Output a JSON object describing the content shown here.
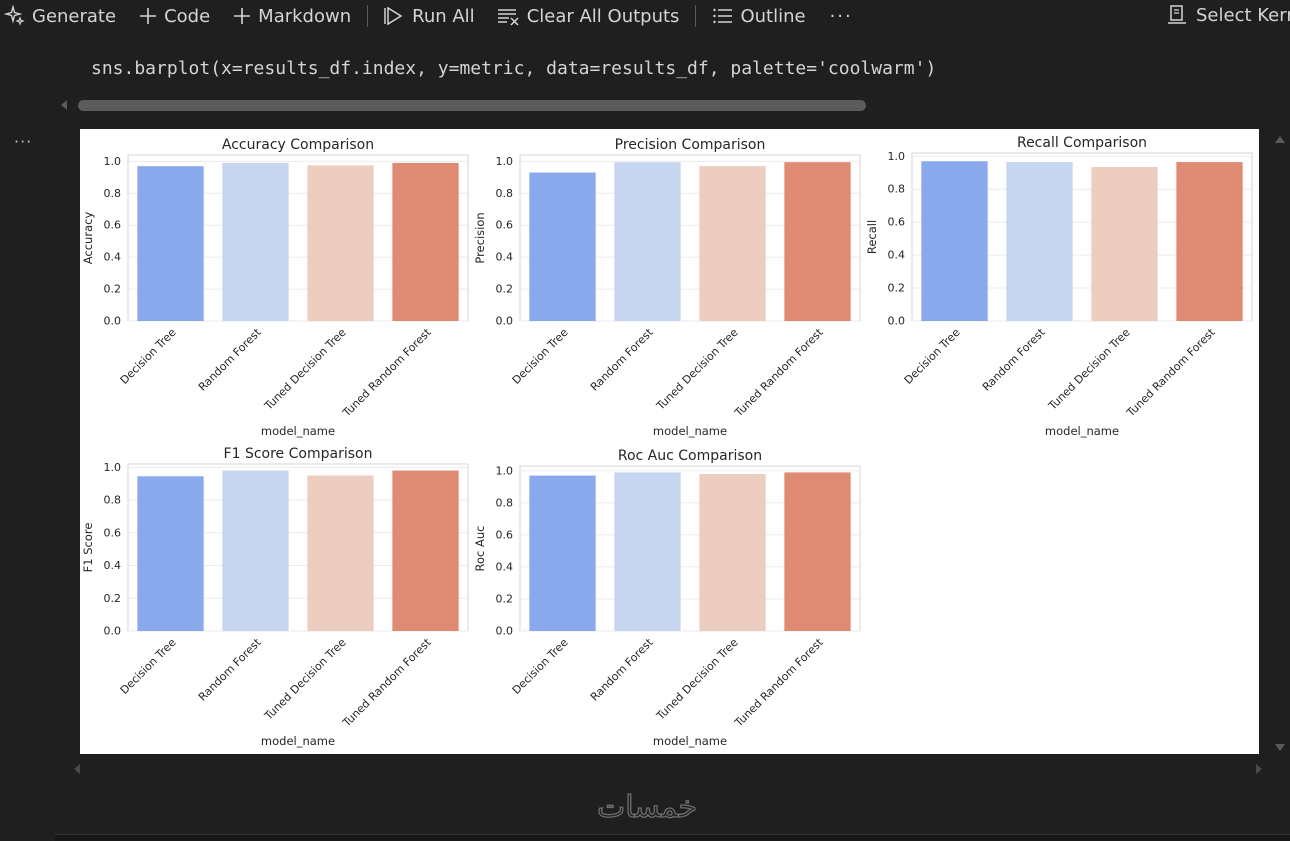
{
  "toolbar": {
    "generate": "Generate",
    "code": "Code",
    "markdown": "Markdown",
    "run_all": "Run All",
    "clear_all": "Clear All Outputs",
    "outline": "Outline",
    "more": "···",
    "select_kernel": "Select Kern"
  },
  "cell": {
    "code": "sns.barplot(x=results_df.index, y=metric, data=results_df, palette='coolwarm')",
    "output_menu": "···"
  },
  "watermark": {
    "text": "خمسات"
  },
  "chart_data": [
    {
      "type": "bar",
      "title": "Accuracy Comparison",
      "xlabel": "model_name",
      "ylabel": "Accuracy",
      "ylim": [
        0,
        1.04
      ],
      "yticks": [
        "0.0",
        "0.2",
        "0.4",
        "0.6",
        "0.8",
        "1.0"
      ],
      "categories": [
        "Decision Tree",
        "Random Forest",
        "Tuned Decision Tree",
        "Tuned Random Forest"
      ],
      "values": [
        0.97,
        0.99,
        0.975,
        0.99
      ],
      "colors": [
        "#8aa8ec",
        "#c6d5f0",
        "#eccdbf",
        "#df8b74"
      ]
    },
    {
      "type": "bar",
      "title": "Precision Comparison",
      "xlabel": "model_name",
      "ylabel": "Precision",
      "ylim": [
        0,
        1.04
      ],
      "yticks": [
        "0.0",
        "0.2",
        "0.4",
        "0.6",
        "0.8",
        "1.0"
      ],
      "categories": [
        "Decision Tree",
        "Random Forest",
        "Tuned Decision Tree",
        "Tuned Random Forest"
      ],
      "values": [
        0.93,
        0.995,
        0.97,
        0.995
      ],
      "colors": [
        "#8aa8ec",
        "#c6d5f0",
        "#eccdbf",
        "#df8b74"
      ]
    },
    {
      "type": "bar",
      "title": "Recall Comparison",
      "xlabel": "model_name",
      "ylabel": "Recall",
      "ylim": [
        0,
        1.02
      ],
      "yticks": [
        "0.0",
        "0.2",
        "0.4",
        "0.6",
        "0.8",
        "1.0"
      ],
      "categories": [
        "Decision Tree",
        "Random Forest",
        "Tuned Decision Tree",
        "Tuned Random Forest"
      ],
      "values": [
        0.97,
        0.965,
        0.935,
        0.965
      ],
      "colors": [
        "#8aa8ec",
        "#c6d5f0",
        "#eccdbf",
        "#df8b74"
      ]
    },
    {
      "type": "bar",
      "title": "F1 Score Comparison",
      "xlabel": "model_name",
      "ylabel": "F1 Score",
      "ylim": [
        0,
        1.02
      ],
      "yticks": [
        "0.0",
        "0.2",
        "0.4",
        "0.6",
        "0.8",
        "1.0"
      ],
      "categories": [
        "Decision Tree",
        "Random Forest",
        "Tuned Decision Tree",
        "Tuned Random Forest"
      ],
      "values": [
        0.945,
        0.98,
        0.95,
        0.98
      ],
      "colors": [
        "#8aa8ec",
        "#c6d5f0",
        "#eccdbf",
        "#df8b74"
      ]
    },
    {
      "type": "bar",
      "title": "Roc Auc Comparison",
      "xlabel": "model_name",
      "ylabel": "Roc Auc",
      "ylim": [
        0,
        1.03
      ],
      "yticks": [
        "0.0",
        "0.2",
        "0.4",
        "0.6",
        "0.8",
        "1.0"
      ],
      "categories": [
        "Decision Tree",
        "Random Forest",
        "Tuned Decision Tree",
        "Tuned Random Forest"
      ],
      "values": [
        0.97,
        0.99,
        0.98,
        0.99
      ],
      "colors": [
        "#8aa8ec",
        "#c6d5f0",
        "#eccdbf",
        "#df8b74"
      ]
    }
  ]
}
